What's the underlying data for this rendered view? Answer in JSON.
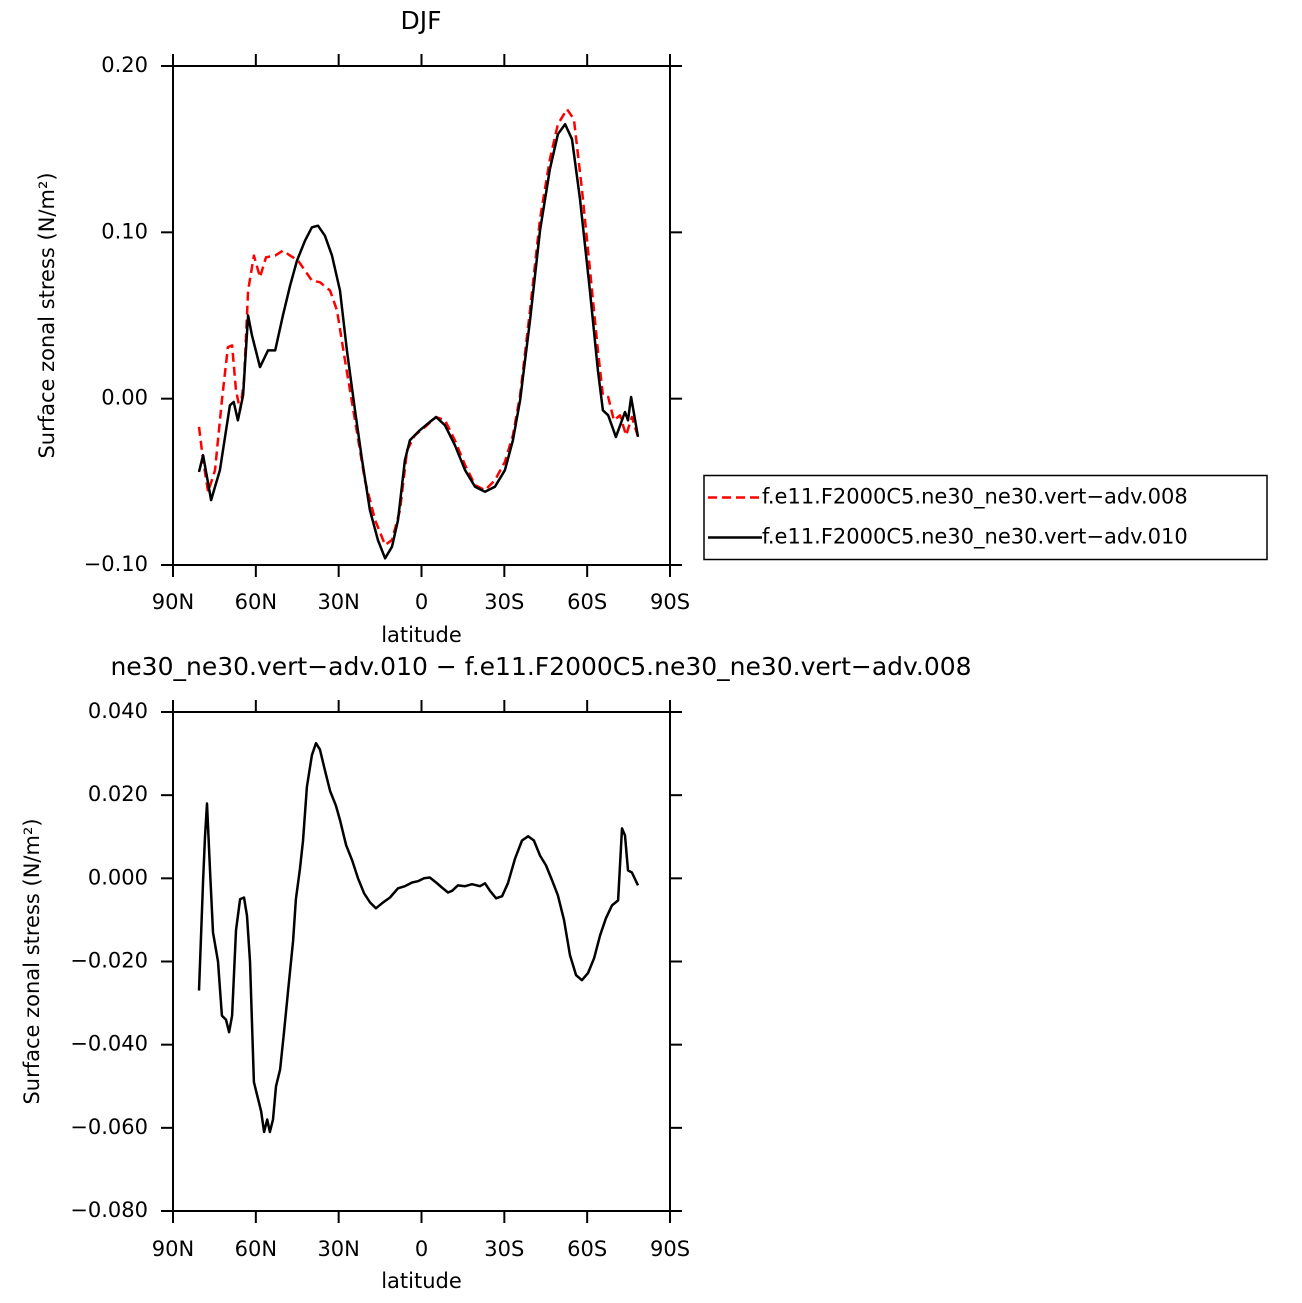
{
  "chart_data": [
    {
      "type": "line",
      "title": "DJF",
      "x_label": "latitude",
      "y_label": "Surface zonal stress (N/m²)",
      "xlim": [
        90,
        -90
      ],
      "xticks": [
        {
          "value": 90,
          "label": "90N"
        },
        {
          "value": 60,
          "label": "60N"
        },
        {
          "value": 30,
          "label": "30N"
        },
        0,
        {
          "value": -30,
          "label": "30S"
        },
        {
          "value": -60,
          "label": "60S"
        },
        {
          "value": -90,
          "label": "90S"
        }
      ],
      "ylim": [
        -0.1,
        0.2
      ],
      "yticks": [
        {
          "value": 0.2,
          "label": "0.20"
        },
        {
          "value": 0.1,
          "label": "0.10"
        },
        {
          "value": 0,
          "label": "0.00"
        },
        {
          "value": -0.1,
          "label": "−0.10"
        }
      ],
      "legend": "right",
      "series": [
        {
          "name": "f.e11.F2000C5.ne30_ne30.vert−adv.008",
          "color": "#ff0000",
          "line_style": "dashed",
          "x": [
            80.6,
            79.1,
            77.3,
            74.8,
            72.3,
            70.1,
            68.6,
            67.2,
            65.7,
            64.3,
            62.8,
            60.7,
            58.5,
            56.3,
            53,
            50.2,
            47.6,
            44.7,
            42.2,
            39.7,
            36.8,
            33.1,
            30.6,
            27.7,
            24.1,
            20.5,
            16.8,
            13.2,
            10.7,
            7.8,
            5.2,
            2.4,
            -1.3,
            -5.3,
            -8.5,
            -12.1,
            -15.8,
            -19.4,
            -23,
            -26.6,
            -30.2,
            -33.1,
            -35.7,
            -39.3,
            -42.9,
            -46.5,
            -49.4,
            -52.7,
            -55.2,
            -58.1,
            -61,
            -63.9,
            -65.7,
            -67.6,
            -69.7,
            -71.9,
            -74.1,
            -76.2,
            -78.4
          ],
          "values": [
            -0.017,
            -0.037,
            -0.056,
            -0.043,
            -0.001,
            0.031,
            0.032,
            0.005,
            -0.007,
            0.011,
            0.065,
            0.086,
            0.073,
            0.085,
            0.086,
            0.089,
            0.086,
            0.083,
            0.077,
            0.071,
            0.07,
            0.065,
            0.053,
            0.023,
            -0.013,
            -0.049,
            -0.073,
            -0.088,
            -0.085,
            -0.067,
            -0.031,
            -0.022,
            -0.017,
            -0.011,
            -0.013,
            -0.025,
            -0.04,
            -0.052,
            -0.055,
            -0.049,
            -0.038,
            -0.022,
            0.002,
            0.053,
            0.108,
            0.144,
            0.165,
            0.174,
            0.168,
            0.126,
            0.078,
            0.029,
            0.002,
            0.001,
            -0.013,
            -0.01,
            -0.022,
            -0.011,
            -0.023
          ]
        },
        {
          "name": "f.e11.F2000C5.ne30_ne30.vert−adv.010",
          "color": "#000000",
          "line_style": "solid",
          "x": [
            80.6,
            79.1,
            76.2,
            73,
            69.4,
            68,
            66.5,
            64.6,
            62.8,
            61.4,
            58.5,
            55.6,
            53,
            50.2,
            47.6,
            45.1,
            42.2,
            39.7,
            37.5,
            35,
            32.4,
            29.5,
            27,
            24.1,
            21.5,
            18.7,
            15.8,
            13.2,
            10.7,
            8.5,
            6,
            4.2,
            0.6,
            -3,
            -5.3,
            -8.5,
            -12.1,
            -15.8,
            -19.4,
            -23,
            -26.6,
            -30.2,
            -33.1,
            -35.7,
            -39.3,
            -42.9,
            -46.5,
            -49.4,
            -52,
            -54.5,
            -57.4,
            -61,
            -63.9,
            -65.7,
            -67.6,
            -70.4,
            -73.7,
            -74.8,
            -75.9,
            -78.4
          ],
          "values": [
            -0.044,
            -0.034,
            -0.061,
            -0.043,
            -0.004,
            -0.002,
            -0.013,
            0.002,
            0.05,
            0.038,
            0.019,
            0.029,
            0.029,
            0.05,
            0.068,
            0.083,
            0.095,
            0.103,
            0.104,
            0.098,
            0.086,
            0.065,
            0.029,
            -0.007,
            -0.037,
            -0.067,
            -0.085,
            -0.096,
            -0.089,
            -0.073,
            -0.037,
            -0.025,
            -0.019,
            -0.014,
            -0.011,
            -0.016,
            -0.028,
            -0.043,
            -0.053,
            -0.056,
            -0.053,
            -0.043,
            -0.025,
            -0.001,
            0.047,
            0.101,
            0.138,
            0.159,
            0.165,
            0.156,
            0.12,
            0.065,
            0.017,
            -0.007,
            -0.01,
            -0.023,
            -0.008,
            -0.013,
            0.001,
            -0.023
          ]
        }
      ]
    },
    {
      "type": "line",
      "title": "ne30_ne30.vert−adv.010 − f.e11.F2000C5.ne30_ne30.vert−adv.008",
      "x_label": "latitude",
      "y_label": "Surface zonal stress (N/m²)",
      "xlim": [
        90,
        -90
      ],
      "xticks": [
        {
          "value": 90,
          "label": "90N"
        },
        {
          "value": 60,
          "label": "60N"
        },
        {
          "value": 30,
          "label": "30N"
        },
        0,
        {
          "value": -30,
          "label": "30S"
        },
        {
          "value": -60,
          "label": "60S"
        },
        {
          "value": -90,
          "label": "90S"
        }
      ],
      "ylim": [
        -0.08,
        0.04
      ],
      "yticks": [
        {
          "value": 0.04,
          "label": "0.040"
        },
        {
          "value": 0.02,
          "label": "0.020"
        },
        {
          "value": 0,
          "label": "0.000"
        },
        {
          "value": -0.02,
          "label": "−0.020"
        },
        {
          "value": -0.04,
          "label": "−0.040"
        },
        {
          "value": -0.06,
          "label": "−0.060"
        },
        {
          "value": -0.08,
          "label": "−0.080"
        }
      ],
      "color": "#000000",
      "x": [
        80.6,
        79.1,
        78.4,
        77.7,
        76.6,
        75.5,
        73.7,
        72.3,
        70.8,
        69.7,
        68.6,
        67.2,
        65.7,
        64.3,
        63.2,
        62.1,
        60.7,
        59.2,
        58.1,
        57,
        55.9,
        54.9,
        53.8,
        52.7,
        51.2,
        49.8,
        48.3,
        46.5,
        45.5,
        44,
        42.9,
        41.5,
        39.7,
        38.2,
        36.8,
        35,
        33.1,
        31,
        29.5,
        27.3,
        25.1,
        23,
        20.8,
        18.6,
        16.5,
        14.3,
        11.4,
        8.5,
        6,
        3.4,
        1.3,
        -0.9,
        -3,
        -5.3,
        -7.4,
        -9.6,
        -11.1,
        -13.2,
        -15.8,
        -18.3,
        -21.2,
        -23,
        -24.8,
        -27,
        -29.2,
        -31.3,
        -33.9,
        -36.4,
        -38.6,
        -40.7,
        -42.9,
        -45.1,
        -47.3,
        -49.4,
        -51.6,
        -53.8,
        -56,
        -58.1,
        -60.3,
        -62.5,
        -64.7,
        -66.8,
        -69,
        -71.2,
        -72.6,
        -73.7,
        -74.8,
        -76.2,
        -78.4
      ],
      "values": [
        -0.027,
        -0.0005,
        0.01,
        0.018,
        0.002,
        -0.013,
        -0.02,
        -0.033,
        -0.034,
        -0.037,
        -0.033,
        -0.0125,
        -0.005,
        -0.0046,
        -0.009,
        -0.02,
        -0.049,
        -0.053,
        -0.056,
        -0.061,
        -0.058,
        -0.061,
        -0.058,
        -0.05,
        -0.046,
        -0.037,
        -0.027,
        -0.015,
        -0.005,
        0.0024,
        0.009,
        0.022,
        0.0296,
        0.0325,
        0.031,
        0.026,
        0.021,
        0.0175,
        0.014,
        0.008,
        0.0043,
        0,
        -0.0036,
        -0.0058,
        -0.0072,
        -0.006,
        -0.0046,
        -0.0024,
        -0.0019,
        -0.001,
        -0.0007,
        0,
        0.0002,
        -0.001,
        -0.0022,
        -0.0034,
        -0.003,
        -0.0017,
        -0.0019,
        -0.0014,
        -0.0019,
        -0.0012,
        -0.003,
        -0.0048,
        -0.0043,
        -0.0012,
        0.0048,
        0.0091,
        0.0101,
        0.0091,
        0.0055,
        0.0031,
        -0.0005,
        -0.0041,
        -0.01,
        -0.0185,
        -0.0233,
        -0.0245,
        -0.0228,
        -0.0192,
        -0.0137,
        -0.0096,
        -0.0065,
        -0.0053,
        0.012,
        0.0103,
        0.0019,
        0.0014,
        -0.0017
      ]
    }
  ]
}
